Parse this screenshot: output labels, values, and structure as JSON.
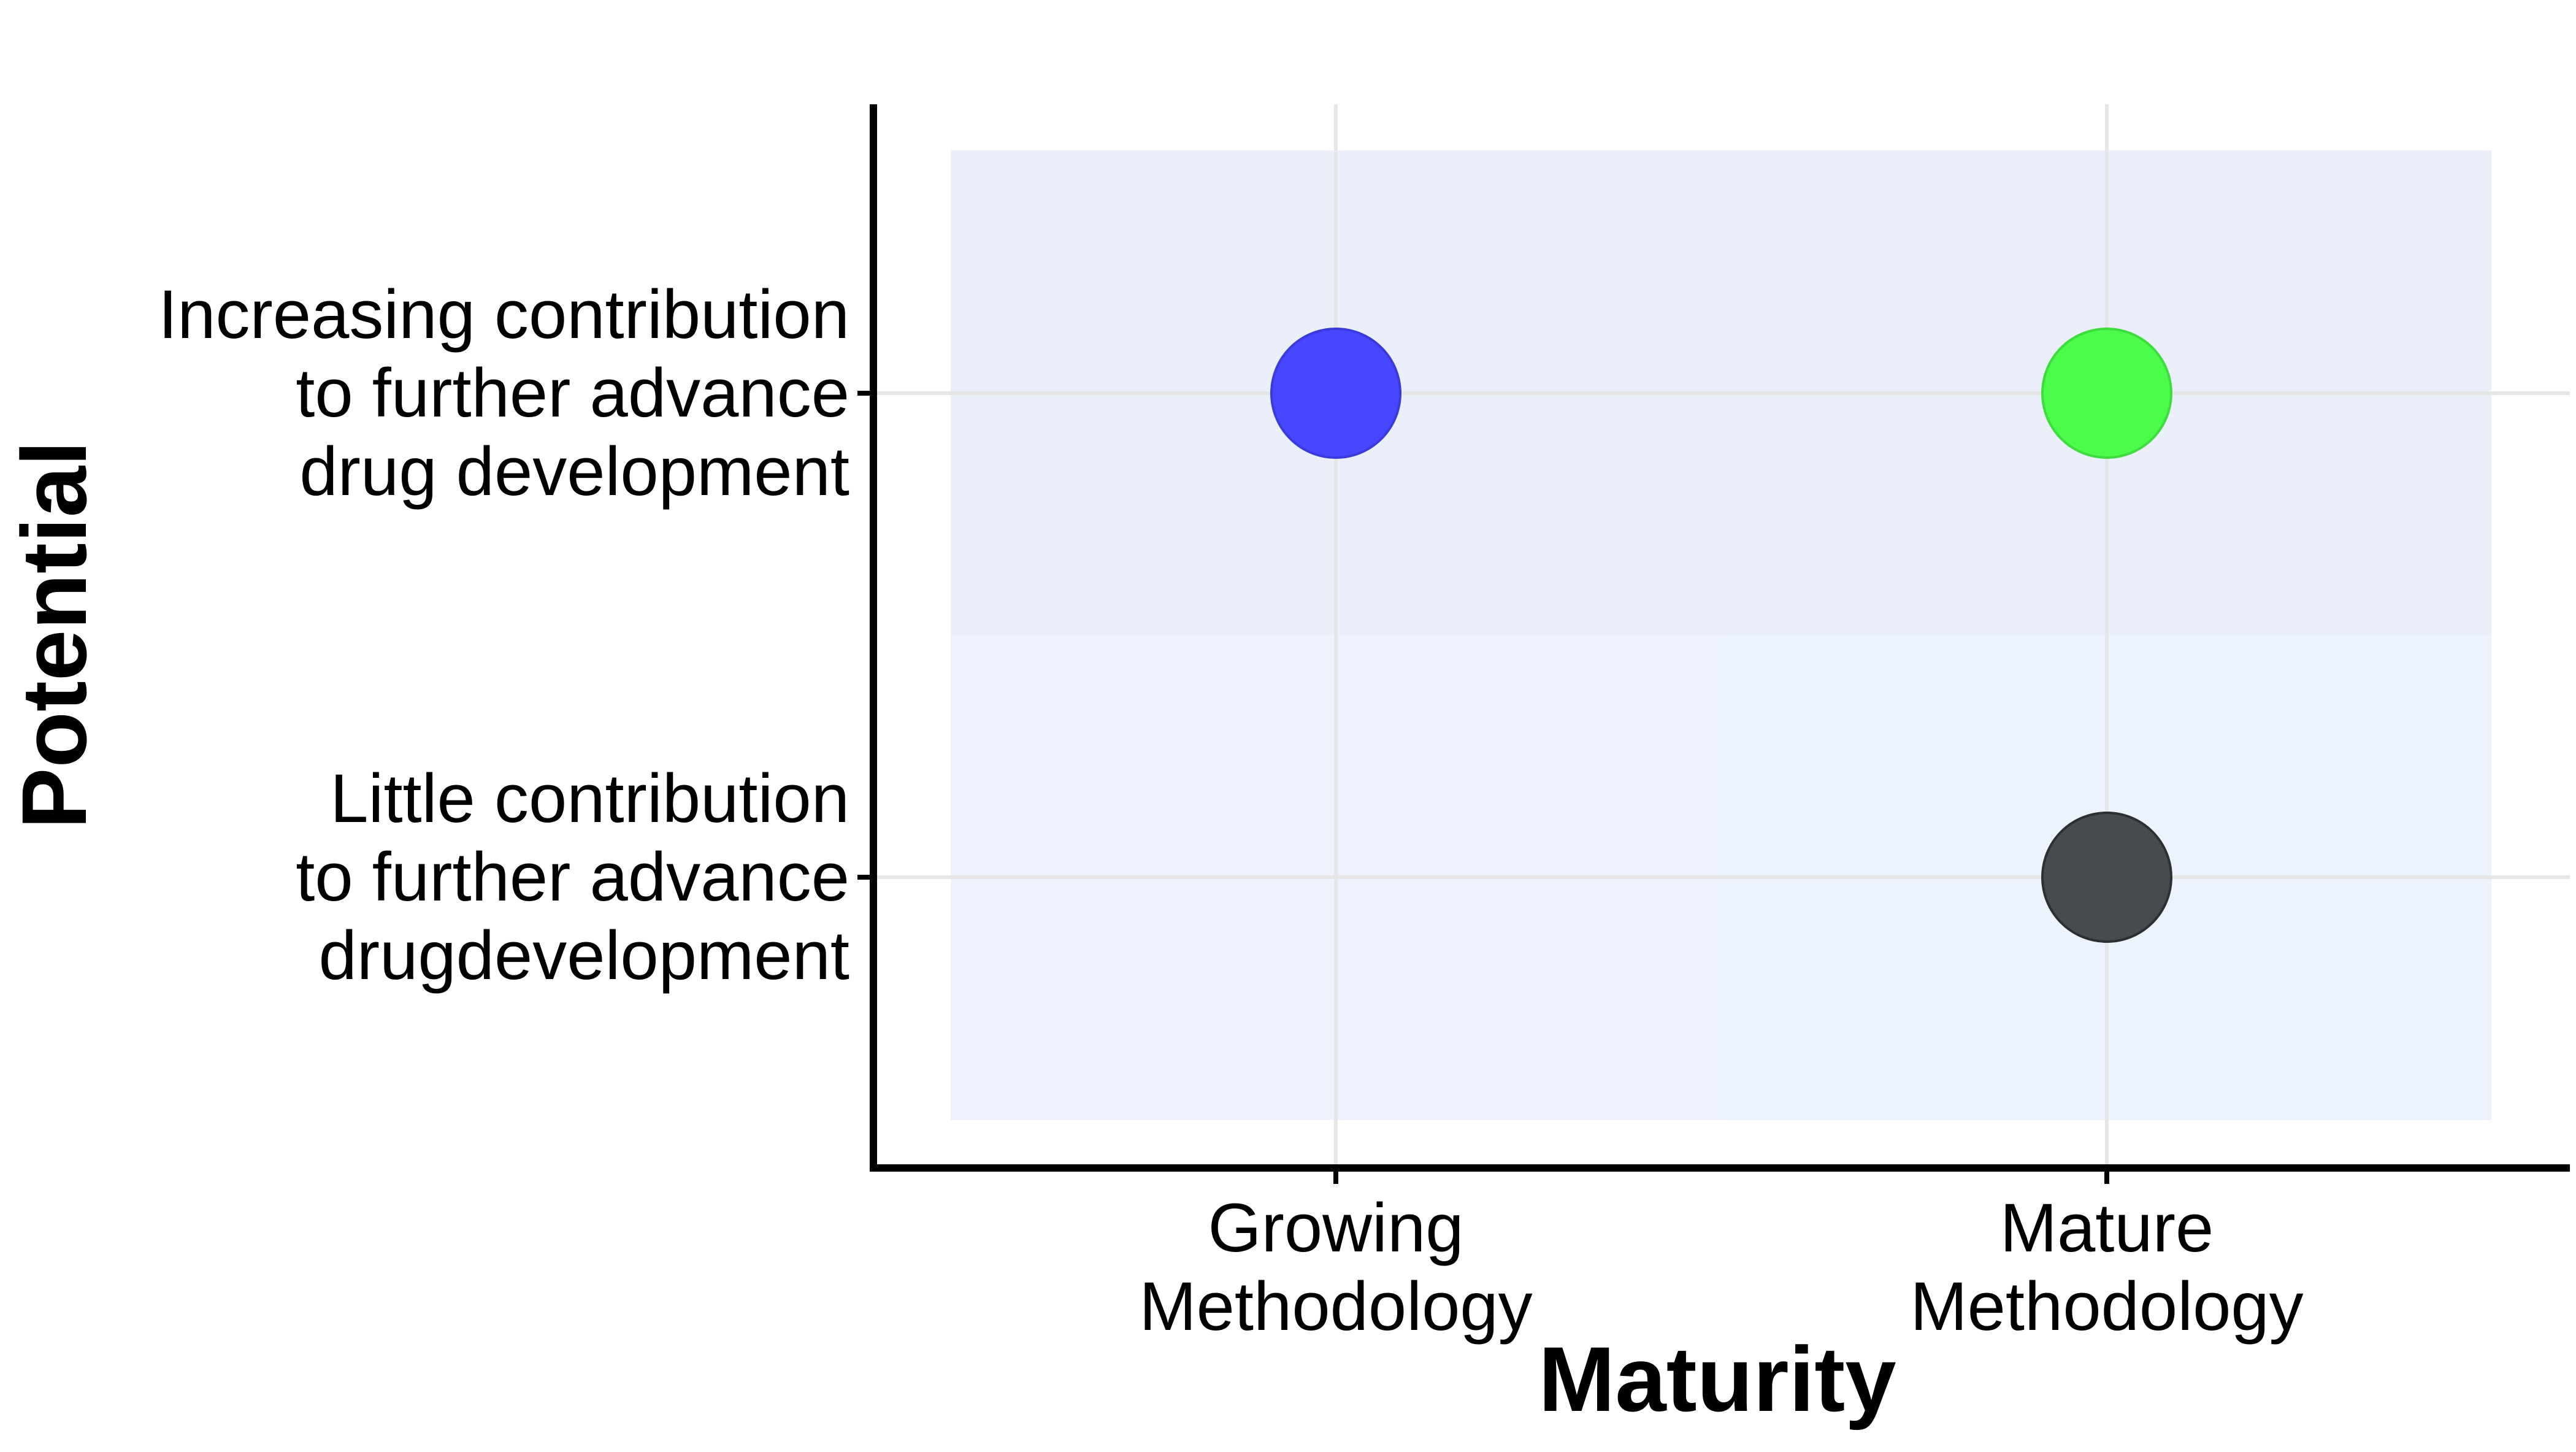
{
  "chart_data": {
    "type": "scatter",
    "title": "",
    "xlabel": "Maturity",
    "ylabel": "Potential",
    "x_categories": [
      [
        "Growing",
        "Methodology"
      ],
      [
        "Mature",
        "Methodology"
      ]
    ],
    "y_categories": [
      [
        "Little contribution",
        "to further advance",
        "drugdevelopment"
      ],
      [
        "Increasing contribution",
        "to further advance",
        "drug development"
      ]
    ],
    "quadrants": [
      {
        "x": 0,
        "y": 1,
        "color": "#ebeffa"
      },
      {
        "x": 1,
        "y": 1,
        "color": "#ebeffa"
      },
      {
        "x": 0,
        "y": 0,
        "color": "#edf2fc"
      },
      {
        "x": 1,
        "y": 0,
        "color": "#edf3fd"
      }
    ],
    "points": [
      {
        "x": "Growing Methodology",
        "y": "Increasing contribution to further advance drug development",
        "x_index": 0,
        "y_index": 1,
        "color": "#4747ff",
        "stroke": "#3b3bdd"
      },
      {
        "x": "Mature Methodology",
        "y": "Increasing contribution to further advance drug development",
        "x_index": 1,
        "y_index": 1,
        "color": "#4bfc4b",
        "stroke": "#3edc3e"
      },
      {
        "x": "Mature Methodology",
        "y": "Little contribution to further advance drugdevelopment",
        "x_index": 1,
        "y_index": 0,
        "color": "#474b4f",
        "stroke": "#2d3033"
      }
    ],
    "grid": true,
    "legend": "none"
  }
}
